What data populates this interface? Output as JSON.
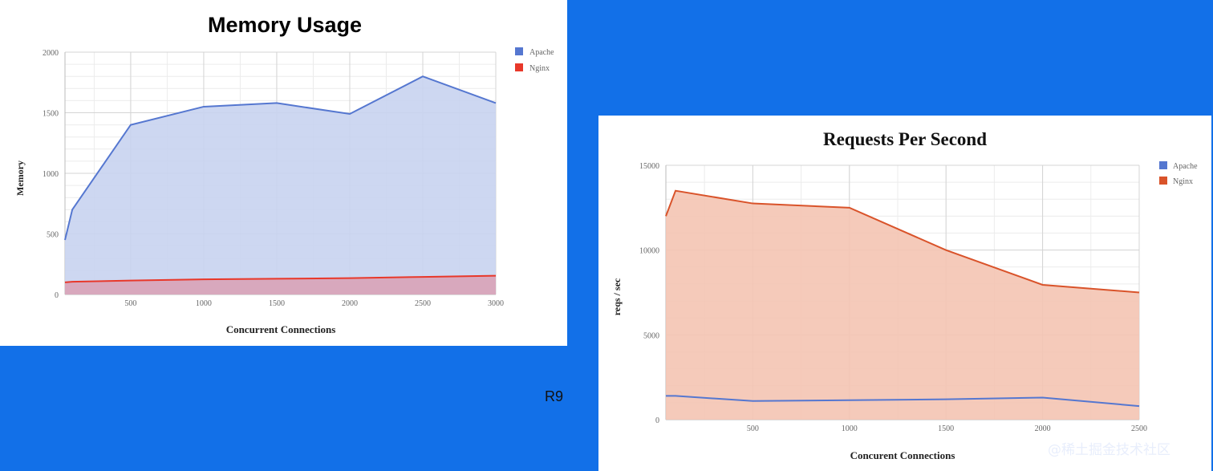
{
  "slide_label": "R9",
  "watermark": "@稀土掘金技术社区",
  "chart_data": [
    {
      "type": "area",
      "title": "Memory Usage",
      "xlabel": "Concurrent Connections",
      "ylabel": "Memory",
      "xlim": [
        50,
        3000
      ],
      "ylim": [
        0,
        2000
      ],
      "x_ticks": [
        500,
        1000,
        1500,
        2000,
        2500,
        3000
      ],
      "y_ticks": [
        0,
        500,
        1000,
        1500,
        2000
      ],
      "legend_position": "top-right",
      "grid": true,
      "series": [
        {
          "name": "Apache",
          "color": "#5577D0",
          "fill": "#C8D3F0",
          "x": [
            50,
            100,
            500,
            1000,
            1500,
            2000,
            2500,
            3000
          ],
          "values": [
            450,
            700,
            1400,
            1550,
            1580,
            1490,
            1800,
            1580
          ]
        },
        {
          "name": "Nginx",
          "color": "#E8382A",
          "fill": "#D9A3B7",
          "x": [
            50,
            100,
            500,
            1000,
            1500,
            2000,
            2500,
            3000
          ],
          "values": [
            100,
            105,
            115,
            125,
            130,
            135,
            145,
            155
          ]
        }
      ]
    },
    {
      "type": "area",
      "title": "Requests Per Second",
      "xlabel": "Concurent Connections",
      "ylabel": "reqs / sec",
      "xlim": [
        50,
        2500
      ],
      "ylim": [
        0,
        15000
      ],
      "x_ticks": [
        500,
        1000,
        1500,
        2000,
        2500
      ],
      "y_ticks": [
        0,
        5000,
        10000,
        15000
      ],
      "legend_position": "top-right",
      "grid": true,
      "series": [
        {
          "name": "Apache",
          "color": "#5577D0",
          "x": [
            50,
            100,
            500,
            1000,
            1500,
            2000,
            2500
          ],
          "values": [
            1400,
            1400,
            1100,
            1150,
            1200,
            1300,
            800
          ]
        },
        {
          "name": "Nginx",
          "color": "#D9532A",
          "fill": "#F4C4B2",
          "x": [
            50,
            100,
            500,
            1000,
            1500,
            2000,
            2500
          ],
          "values": [
            12000,
            13500,
            12750,
            12500,
            10000,
            7950,
            7500
          ]
        }
      ]
    }
  ]
}
